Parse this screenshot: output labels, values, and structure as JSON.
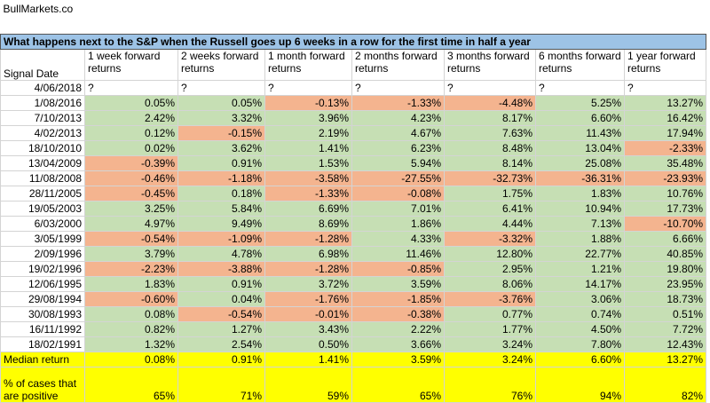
{
  "header": {
    "site": "BullMarkets.co"
  },
  "table": {
    "title": "What happens next to the S&P when the Russell goes up 6 weeks in a row for the first time in half a year",
    "columns": [
      "Signal Date",
      "1 week forward returns",
      "2 weeks forward returns",
      "1 month forward returns",
      "2 months forward returns",
      "3 months forward returns",
      "6 months forward returns",
      "1 year forward returns"
    ],
    "rows": [
      [
        "4/06/2018",
        "?",
        "?",
        "?",
        "?",
        "?",
        "?",
        "?"
      ],
      [
        "1/08/2016",
        "0.05%",
        "0.05%",
        "-0.13%",
        "-1.33%",
        "-4.48%",
        "5.25%",
        "13.27%"
      ],
      [
        "7/10/2013",
        "2.42%",
        "3.32%",
        "3.96%",
        "4.23%",
        "8.17%",
        "6.60%",
        "16.42%"
      ],
      [
        "4/02/2013",
        "0.12%",
        "-0.15%",
        "2.19%",
        "4.67%",
        "7.63%",
        "11.43%",
        "17.94%"
      ],
      [
        "18/10/2010",
        "0.02%",
        "3.62%",
        "1.41%",
        "6.23%",
        "8.48%",
        "13.04%",
        "-2.33%"
      ],
      [
        "13/04/2009",
        "-0.39%",
        "0.91%",
        "1.53%",
        "5.94%",
        "8.14%",
        "25.08%",
        "35.48%"
      ],
      [
        "11/08/2008",
        "-0.46%",
        "-1.18%",
        "-3.58%",
        "-27.55%",
        "-32.73%",
        "-36.31%",
        "-23.93%"
      ],
      [
        "28/11/2005",
        "-0.45%",
        "0.18%",
        "-1.33%",
        "-0.08%",
        "1.75%",
        "1.83%",
        "10.76%"
      ],
      [
        "19/05/2003",
        "3.25%",
        "5.84%",
        "6.69%",
        "7.01%",
        "6.41%",
        "10.94%",
        "17.73%"
      ],
      [
        "6/03/2000",
        "4.97%",
        "9.49%",
        "8.69%",
        "1.86%",
        "4.44%",
        "7.13%",
        "-10.70%"
      ],
      [
        "3/05/1999",
        "-0.54%",
        "-1.09%",
        "-1.28%",
        "4.33%",
        "-3.32%",
        "1.88%",
        "6.66%"
      ],
      [
        "2/09/1996",
        "3.79%",
        "4.78%",
        "6.98%",
        "11.46%",
        "12.80%",
        "22.77%",
        "40.85%"
      ],
      [
        "19/02/1996",
        "-2.23%",
        "-3.88%",
        "-1.28%",
        "-0.85%",
        "2.95%",
        "1.21%",
        "19.80%"
      ],
      [
        "12/06/1995",
        "1.83%",
        "0.91%",
        "3.72%",
        "3.59%",
        "8.06%",
        "14.17%",
        "23.95%"
      ],
      [
        "29/08/1994",
        "-0.60%",
        "0.04%",
        "-1.76%",
        "-1.85%",
        "-3.76%",
        "3.06%",
        "18.73%"
      ],
      [
        "30/08/1993",
        "0.08%",
        "-0.54%",
        "-0.01%",
        "-0.38%",
        "0.77%",
        "0.74%",
        "0.51%"
      ],
      [
        "16/11/1992",
        "0.82%",
        "1.27%",
        "3.43%",
        "2.22%",
        "1.77%",
        "4.50%",
        "7.72%"
      ],
      [
        "18/02/1991",
        "1.32%",
        "2.54%",
        "0.50%",
        "3.66%",
        "3.24%",
        "7.80%",
        "12.43%"
      ]
    ],
    "summary": [
      [
        "Median return",
        "0.08%",
        "0.91%",
        "1.41%",
        "3.59%",
        "3.24%",
        "6.60%",
        "13.27%"
      ],
      [
        "% of cases that are positive",
        "65%",
        "71%",
        "59%",
        "65%",
        "76%",
        "94%",
        "82%"
      ]
    ]
  }
}
